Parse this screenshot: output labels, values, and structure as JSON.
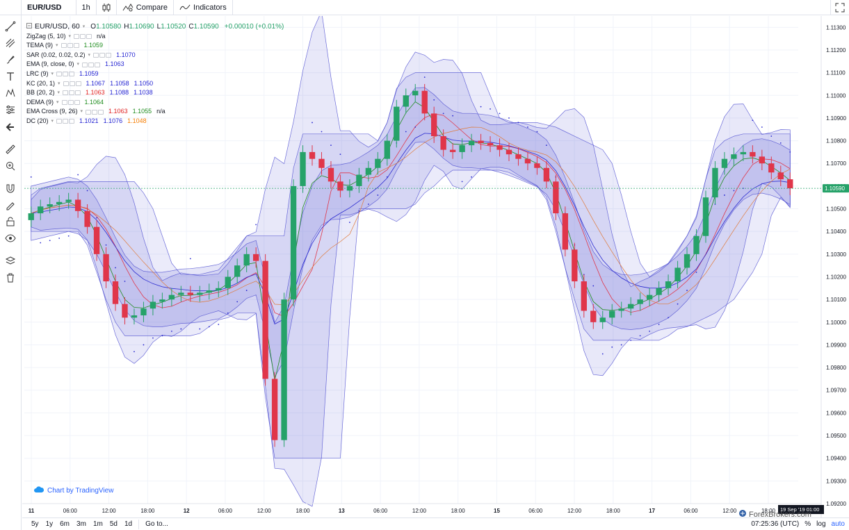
{
  "toolbar": {
    "symbol": "EUR/USD",
    "interval": "1h",
    "compare_label": "Compare",
    "indicators_label": "Indicators"
  },
  "legend": {
    "main_title": "EUR/USD, 60",
    "ohlc": [
      {
        "label": "O",
        "value": "1.10580"
      },
      {
        "label": "H",
        "value": "1.10690"
      },
      {
        "label": "L",
        "value": "1.10520"
      },
      {
        "label": "C",
        "value": "1.10590"
      }
    ],
    "change": "+0.00010 (+0.01%)",
    "indicators": [
      {
        "name": "ZigZag (5, 10)",
        "values": [
          {
            "v": "n/a",
            "color": "#131722"
          }
        ]
      },
      {
        "name": "TEMA (9)",
        "values": [
          {
            "v": "1.1059",
            "color": "#1e8c1e"
          }
        ]
      },
      {
        "name": "SAR (0.02, 0.02, 0.2)",
        "values": [
          {
            "v": "1.1070",
            "color": "#1f1fd1"
          }
        ]
      },
      {
        "name": "EMA (9, close, 0)",
        "values": [
          {
            "v": "1.1063",
            "color": "#1f1fd1"
          }
        ]
      },
      {
        "name": "LRC (9)",
        "values": [
          {
            "v": "1.1059",
            "color": "#1f1fd1"
          }
        ]
      },
      {
        "name": "KC (20, 1)",
        "values": [
          {
            "v": "1.1067",
            "color": "#1f1fd1"
          },
          {
            "v": "1.1058",
            "color": "#1f1fd1"
          },
          {
            "v": "1.1050",
            "color": "#1f1fd1"
          }
        ]
      },
      {
        "name": "BB (20, 2)",
        "values": [
          {
            "v": "1.1063",
            "color": "#e01e1e"
          },
          {
            "v": "1.1088",
            "color": "#1f1fd1"
          },
          {
            "v": "1.1038",
            "color": "#1f1fd1"
          }
        ]
      },
      {
        "name": "DEMA (9)",
        "values": [
          {
            "v": "1.1064",
            "color": "#1e8c1e"
          }
        ]
      },
      {
        "name": "EMA Cross (9, 26)",
        "values": [
          {
            "v": "1.1063",
            "color": "#e01e1e"
          },
          {
            "v": "1.1055",
            "color": "#1e8c1e"
          },
          {
            "v": "n/a",
            "color": "#131722"
          }
        ]
      },
      {
        "name": "DC (20)",
        "values": [
          {
            "v": "1.1021",
            "color": "#1f1fd1"
          },
          {
            "v": "1.1076",
            "color": "#1f1fd1"
          },
          {
            "v": "1.1048",
            "color": "#f57c00"
          }
        ]
      }
    ]
  },
  "colors": {
    "up": "#26a269",
    "down": "#e0364a",
    "band_fill": "#5b5bd6",
    "grid": "#f0f3fa",
    "price_badge": "#26a269"
  },
  "chart_data": {
    "type": "candlestick",
    "symbol": "EUR/USD",
    "interval": "60",
    "ylim": [
      1.092,
      1.1135
    ],
    "price_ticks": [
      "1.11300",
      "1.11200",
      "1.11100",
      "1.11000",
      "1.10900",
      "1.10800",
      "1.10700",
      "1.10600",
      "1.10500",
      "1.10400",
      "1.10300",
      "1.10200",
      "1.10100",
      "1.10000",
      "1.09900",
      "1.09800",
      "1.09700",
      "1.09600",
      "1.09500",
      "1.09400",
      "1.09300",
      "1.09200"
    ],
    "price_tick_values": [
      1.113,
      1.112,
      1.111,
      1.11,
      1.109,
      1.108,
      1.107,
      1.106,
      1.105,
      1.104,
      1.103,
      1.102,
      1.101,
      1.1,
      1.099,
      1.098,
      1.097,
      1.096,
      1.095,
      1.094,
      1.093,
      1.092
    ],
    "time_ticks": [
      "11",
      "06:00",
      "12:00",
      "18:00",
      "12",
      "06:00",
      "12:00",
      "18:00",
      "13",
      "06:00",
      "12:00",
      "18:00",
      "15",
      "06:00",
      "12:00",
      "18:00",
      "17",
      "06:00",
      "12:00",
      "18:00"
    ],
    "time_tick_bold": [
      true,
      false,
      false,
      false,
      true,
      false,
      false,
      false,
      true,
      false,
      false,
      false,
      true,
      false,
      false,
      false,
      true,
      false,
      false,
      false
    ],
    "last_price": "1.10590",
    "last_price_value": 1.1059,
    "crosshair_date": "19 Sep '19  01:00",
    "close_path": [
      1.1048,
      1.1051,
      1.1052,
      1.1053,
      1.1054,
      1.1049,
      1.1042,
      1.103,
      1.1018,
      1.1008,
      1.1002,
      1.1003,
      1.1006,
      1.1009,
      1.101,
      1.1012,
      1.1013,
      1.1012,
      1.1013,
      1.1014,
      1.1015,
      1.102,
      1.1025,
      1.103,
      1.1027,
      1.0975,
      1.0948,
      1.101,
      1.106,
      1.1075,
      1.1072,
      1.1068,
      1.1062,
      1.1058,
      1.106,
      1.1065,
      1.1068,
      1.1072,
      1.108,
      1.1095,
      1.11,
      1.1102,
      1.1092,
      1.1082,
      1.1076,
      1.1075,
      1.1078,
      1.108,
      1.1079,
      1.1078,
      1.1076,
      1.1074,
      1.1072,
      1.107,
      1.1068,
      1.1062,
      1.1048,
      1.1032,
      1.1018,
      1.1005,
      1.1,
      1.1002,
      1.1005,
      1.1006,
      1.1008,
      1.101,
      1.1012,
      1.1015,
      1.1018,
      1.1024,
      1.103,
      1.1038,
      1.1055,
      1.1068,
      1.1072,
      1.1074,
      1.1075,
      1.1073,
      1.107,
      1.1066,
      1.1063,
      1.1059
    ]
  },
  "bottombar": {
    "ranges": [
      "5y",
      "1y",
      "6m",
      "3m",
      "1m",
      "5d",
      "1d"
    ],
    "goto_label": "Go to...",
    "clock": "07:25:36 (UTC)",
    "pct_label": "%",
    "log_label": "log",
    "auto_label": "auto"
  },
  "branding": {
    "tv_badge": "Chart by TradingView",
    "watermark": "ForexBrokers.com"
  }
}
